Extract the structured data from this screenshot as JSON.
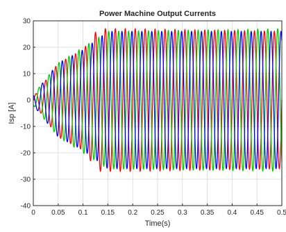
{
  "chart_data": {
    "type": "line",
    "title": "Power Machine Output Currents",
    "xlabel": "Time(s)",
    "ylabel": "Isp [A]",
    "xlim": [
      0,
      0.5
    ],
    "ylim": [
      -40,
      30
    ],
    "xticks": [
      "0",
      "0.05",
      "0.1",
      "0.15",
      "0.2",
      "0.25",
      "0.3",
      "0.35",
      "0.4",
      "0.45",
      "0.5"
    ],
    "yticks": [
      "-40",
      "-30",
      "-20",
      "-10",
      "0",
      "10",
      "20",
      "30"
    ],
    "grid": true,
    "frequency_hz": 50,
    "steady_state_amplitude": 26,
    "series": [
      {
        "color": "#ff0000",
        "phase_deg": 0,
        "envelope": [
          {
            "t": 0.0,
            "amp": 1
          },
          {
            "t": 0.05,
            "amp": 14
          },
          {
            "t": 0.1,
            "amp": 19
          },
          {
            "t": 0.13,
            "amp": 27
          },
          {
            "t": 0.2,
            "amp": 27
          },
          {
            "t": 0.5,
            "amp": 26
          }
        ]
      },
      {
        "color": "#00cc00",
        "phase_deg": 120,
        "envelope": [
          {
            "t": 0.0,
            "amp": 2
          },
          {
            "t": 0.05,
            "amp": 14
          },
          {
            "t": 0.1,
            "amp": 20
          },
          {
            "t": 0.15,
            "amp": 26
          },
          {
            "t": 0.5,
            "amp": 27
          }
        ]
      },
      {
        "color": "#0000ff",
        "phase_deg": 240,
        "envelope": [
          {
            "t": 0.0,
            "amp": 2
          },
          {
            "t": 0.05,
            "amp": 14
          },
          {
            "t": 0.1,
            "amp": 19
          },
          {
            "t": 0.15,
            "amp": 26
          },
          {
            "t": 0.5,
            "amp": 26
          }
        ]
      }
    ]
  }
}
